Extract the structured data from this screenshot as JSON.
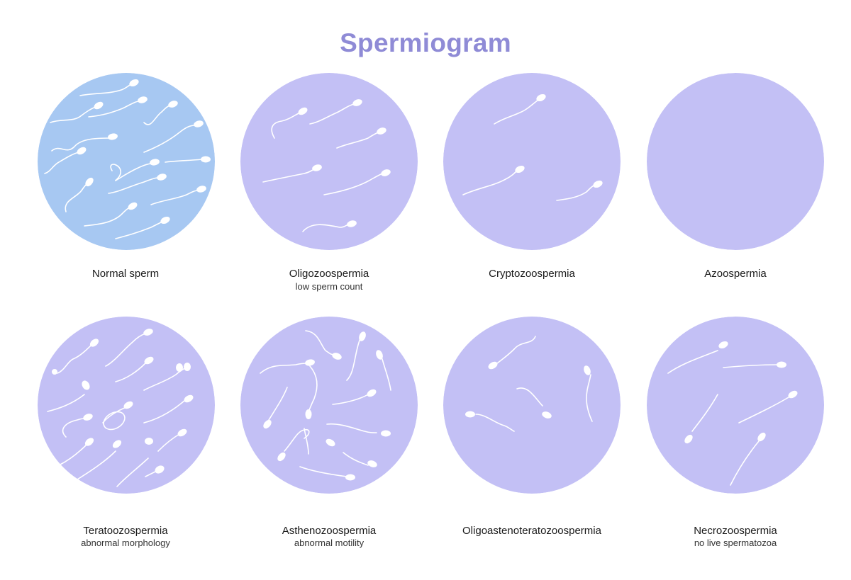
{
  "title": "Spermiogram",
  "colors": {
    "title": "#8f8bd6",
    "normal_circle": "#a7c8f2",
    "abnormal_circle": "#c3c0f5",
    "sperm": "#ffffff"
  },
  "panels": [
    {
      "name": "Normal sperm",
      "subtitle": ""
    },
    {
      "name": "Oligozoospermia",
      "subtitle": "low sperm count"
    },
    {
      "name": "Cryptozoospermia",
      "subtitle": ""
    },
    {
      "name": "Azoospermia",
      "subtitle": ""
    },
    {
      "name": "Teratoozospermia",
      "subtitle": "abnormal morphology"
    },
    {
      "name": "Asthenozoospermia",
      "subtitle": "abnormal motility"
    },
    {
      "name": "Oligoastenoteratozoospermia",
      "subtitle": ""
    },
    {
      "name": "Necrozoospermia",
      "subtitle": "no live spermatozoa"
    }
  ]
}
